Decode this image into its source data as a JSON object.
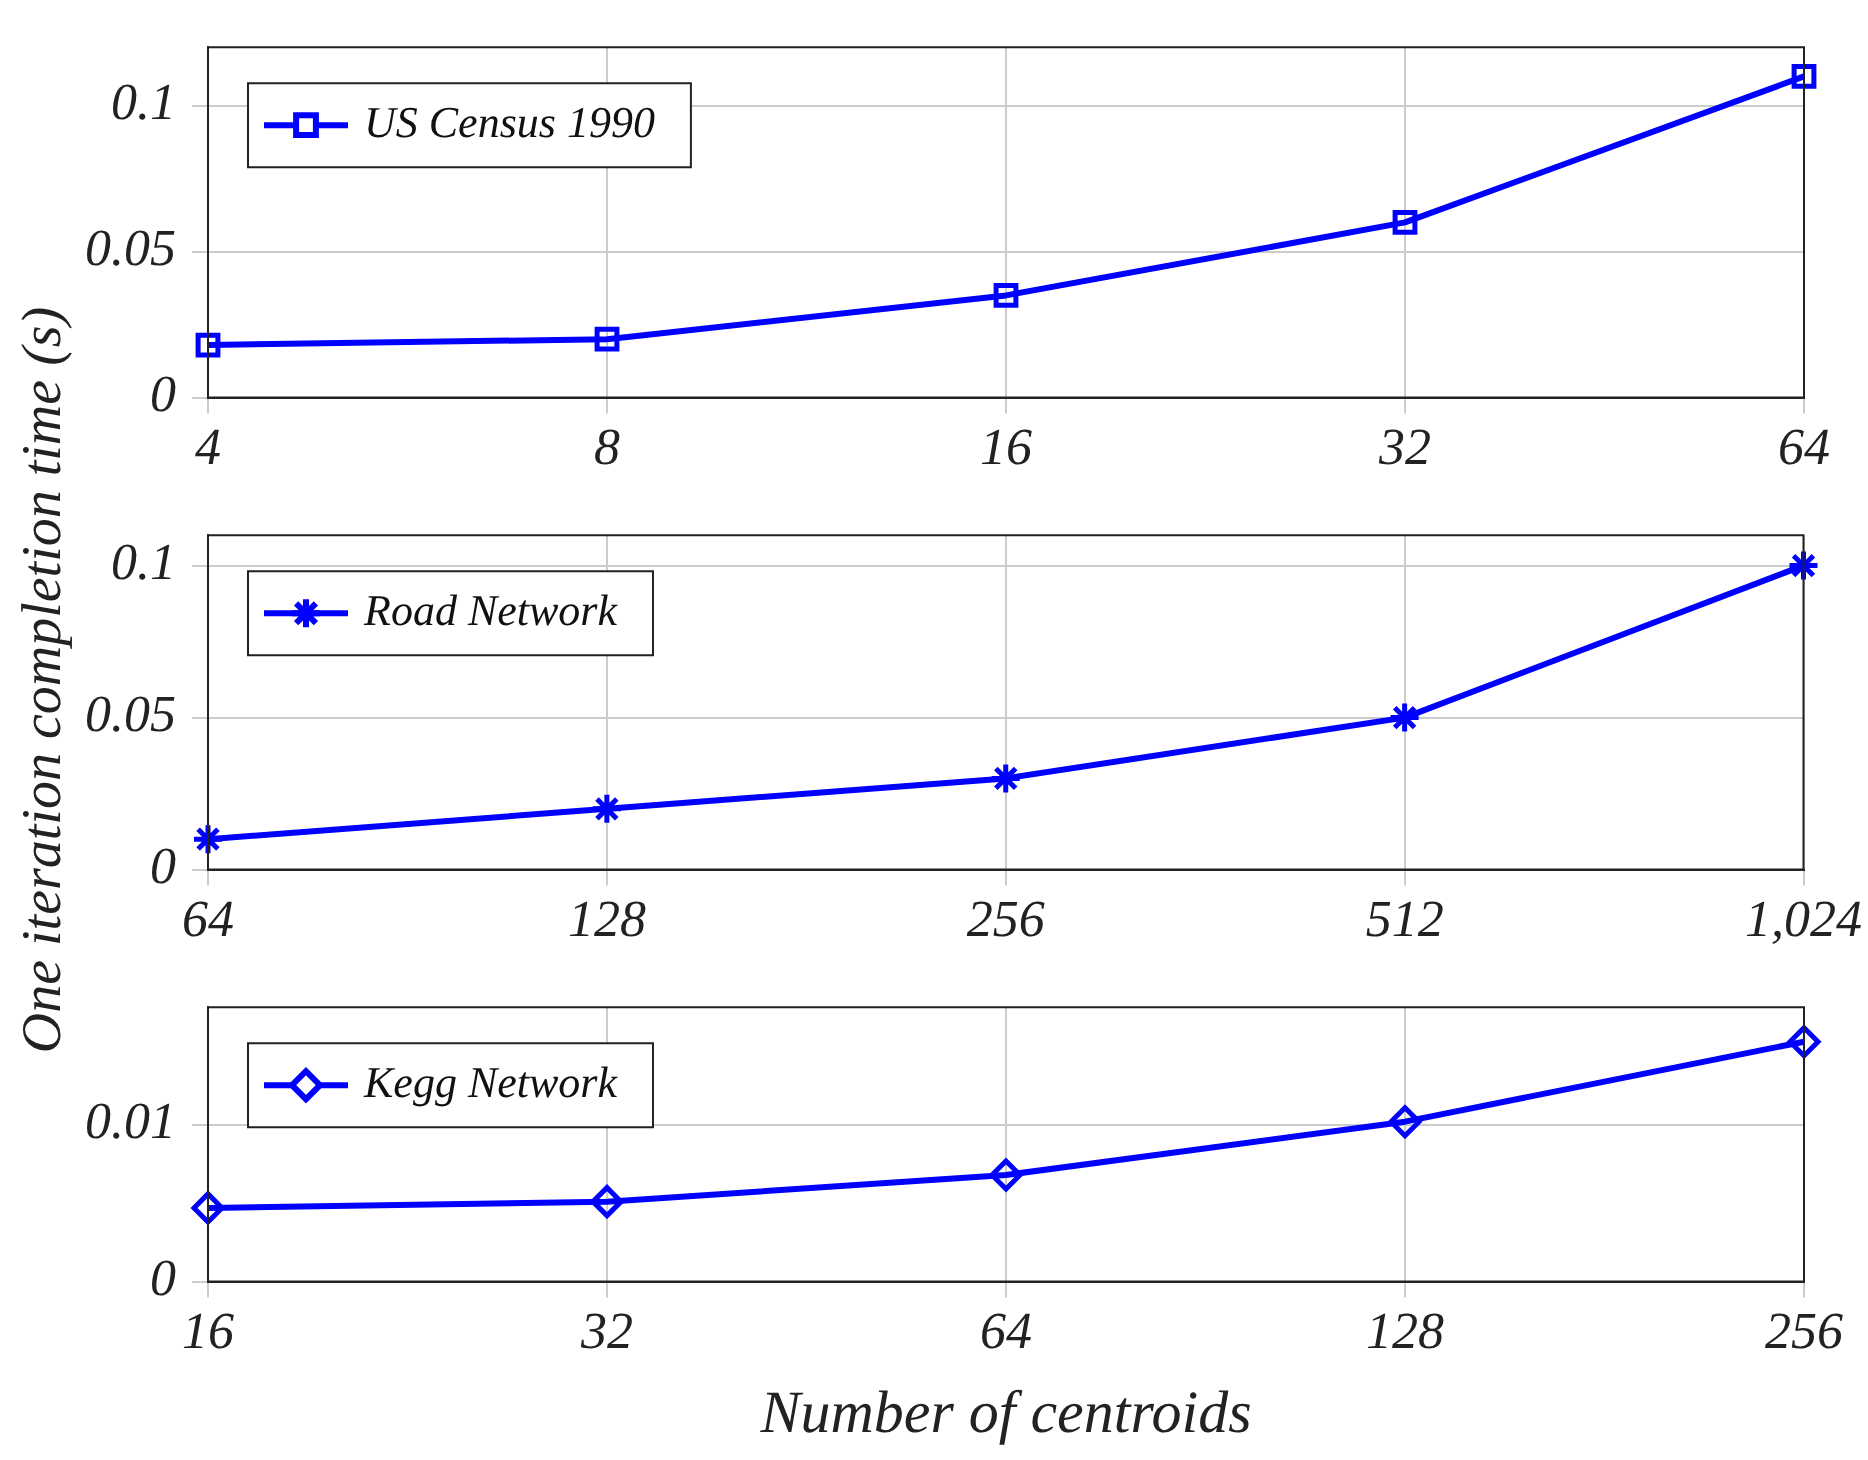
{
  "chart_data": [
    {
      "type": "line",
      "categories": [
        "4",
        "8",
        "16",
        "32",
        "64"
      ],
      "series": [
        {
          "name": "US Census 1990",
          "color": "#0000ff",
          "values": [
            0.018,
            0.02,
            0.035,
            0.06,
            0.11
          ]
        }
      ],
      "ylim": [
        0,
        0.12
      ],
      "yticks": [
        0,
        0.05,
        0.1
      ],
      "grid": true,
      "legend": "top left",
      "marker": "square",
      "line_style": "solid"
    },
    {
      "type": "line",
      "categories": [
        "64",
        "128",
        "256",
        "512",
        "1,024"
      ],
      "ylabel": "One iteration completion time (s)",
      "series": [
        {
          "name": "Road Network",
          "color": "#0000ff",
          "values": [
            0.01,
            0.02,
            0.03,
            0.05,
            0.1
          ]
        }
      ],
      "ylim": [
        0,
        0.11
      ],
      "yticks": [
        0,
        0.05,
        0.1
      ],
      "grid": true,
      "legend": "top left",
      "marker": "cross",
      "line_style": "solid"
    },
    {
      "type": "line",
      "categories": [
        "16",
        "32",
        "64",
        "128",
        "256"
      ],
      "xlabel": "Number of centroids",
      "series": [
        {
          "name": "Kegg Network",
          "color": "#0000ff",
          "values": [
            0.0047,
            0.0051,
            0.0068,
            0.0102,
            0.0153
          ]
        }
      ],
      "ylim": [
        0,
        0.0175
      ],
      "yticks": [
        0,
        0.01
      ],
      "grid": true,
      "legend": "top left",
      "marker": "diamond",
      "line_style": "solid"
    }
  ]
}
